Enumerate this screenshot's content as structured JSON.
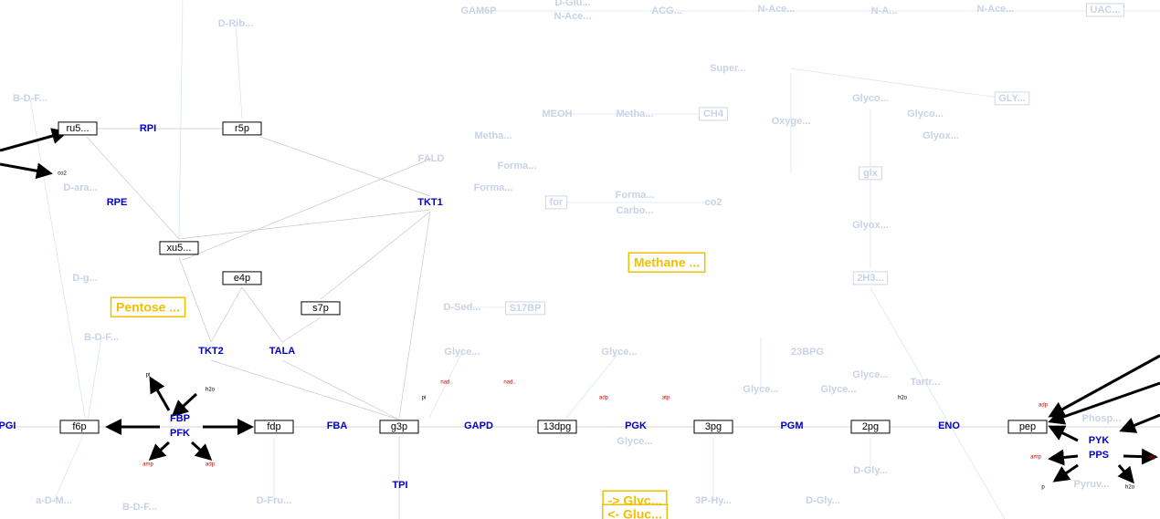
{
  "metabolites": [
    "ru5...",
    "r5p",
    "xu5...",
    "e4p",
    "s7p",
    "f6p",
    "fdp",
    "g3p",
    "13dpg",
    "3pg",
    "2pg",
    "pep"
  ],
  "enzymes": [
    "RPI",
    "RPE",
    "TKT1",
    "TKT2",
    "TALA",
    "FBP",
    "PFK",
    "FBA",
    "GAPD",
    "TPI",
    "PGK",
    "PGM",
    "ENO",
    "PYK",
    "PPS",
    "PGI"
  ],
  "pathways": [
    "Pentose ...",
    "Methane ...",
    "-> Glyc...",
    "<- Gluc..."
  ],
  "side_metabolites": [
    "co2",
    "pi",
    "h2o",
    "pi",
    "h2o",
    "p",
    "h2o"
  ],
  "energy_cofactors": [
    "amp",
    "adp",
    "nad..",
    "nad..",
    "adp",
    "atp",
    "adp",
    "amp",
    "atp"
  ],
  "faded": [
    "GAM6P",
    "D-Glu...",
    "N-Ace...",
    "ACG...",
    "N-Ace...",
    "N-A...",
    "N-Ace...",
    "UAC...",
    "D-Rib...",
    "B-D-F...",
    "Super...",
    "Glyco...",
    "GLY...",
    "MEOH",
    "Metha...",
    "CH4",
    "Oxyge...",
    "Glyco...",
    "Glyox...",
    "Metha...",
    "FALD",
    "Forma...",
    "glx",
    "D-ara...",
    "Forma...",
    "for",
    "Forma...",
    "Carbo...",
    "co2",
    "Glyox...",
    "D-g...",
    "2H3...",
    "D-Sed...",
    "S17BP",
    "B-D-F...",
    "Glyce...",
    "Glyce...",
    "23BPG",
    "Glyce...",
    "Tartr...",
    "Glyce...",
    "Glyce...",
    "Phosp...",
    "Glyce...",
    "D-Gly...",
    "Pyruv...",
    "a-D-M...",
    "B-D-F...",
    "D-Fru...",
    "3P-Hy...",
    "D-Gly..."
  ]
}
